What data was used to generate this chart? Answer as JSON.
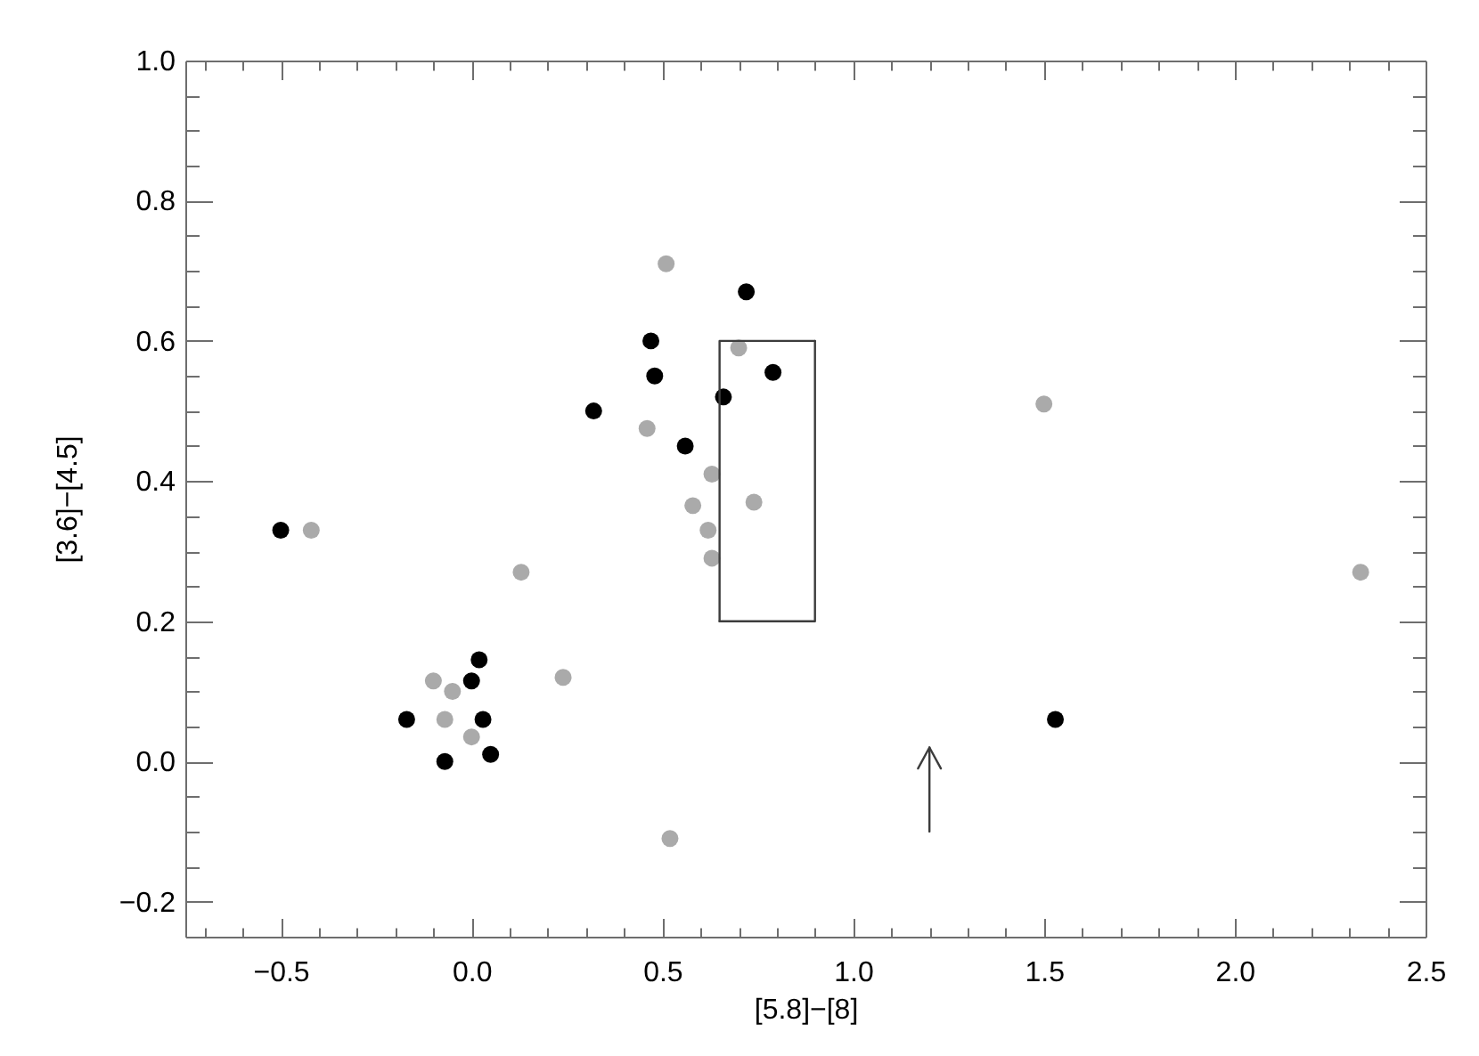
{
  "chart_data": {
    "type": "scatter",
    "xlabel": "[5.8]−[8]",
    "ylabel": "[3.6]−[4.5]",
    "xlim": [
      -0.75,
      2.5
    ],
    "ylim": [
      -0.25,
      1.0
    ],
    "xticks": [
      {
        "value": -0.7,
        "label": null
      },
      {
        "value": -0.6,
        "label": null
      },
      {
        "value": -0.5,
        "label": "−0.5"
      },
      {
        "value": -0.4,
        "label": null
      },
      {
        "value": -0.3,
        "label": null
      },
      {
        "value": -0.2,
        "label": null
      },
      {
        "value": -0.1,
        "label": null
      },
      {
        "value": 0,
        "label": "0.0"
      },
      {
        "value": 0.1,
        "label": null
      },
      {
        "value": 0.2,
        "label": null
      },
      {
        "value": 0.3,
        "label": null
      },
      {
        "value": 0.4,
        "label": null
      },
      0.5,
      {
        "value": 0.6,
        "label": null
      },
      {
        "value": 0.7,
        "label": null
      },
      {
        "value": 0.8,
        "label": null
      },
      {
        "value": 0.9,
        "label": null
      },
      {
        "value": 1,
        "label": "1.0"
      },
      {
        "value": 1.1,
        "label": null
      },
      {
        "value": 1.2,
        "label": null
      },
      {
        "value": 1.3,
        "label": null
      },
      {
        "value": 1.4,
        "label": null
      },
      1.5,
      {
        "value": 1.6,
        "label": null
      },
      {
        "value": 1.7,
        "label": null
      },
      {
        "value": 1.8,
        "label": null
      },
      {
        "value": 1.9,
        "label": null
      },
      {
        "value": 2,
        "label": "2.0"
      },
      {
        "value": 2.1,
        "label": null
      },
      {
        "value": 2.2,
        "label": null
      },
      {
        "value": 2.3,
        "label": null
      },
      {
        "value": 2.4,
        "label": null
      },
      2.5
    ],
    "yticks": [
      {
        "value": -0.2,
        "label": "−0.2"
      },
      {
        "value": -0.15,
        "label": null
      },
      {
        "value": -0.1,
        "label": null
      },
      {
        "value": -0.05,
        "label": null
      },
      {
        "value": 0,
        "label": "0.0"
      },
      {
        "value": 0.05,
        "label": null
      },
      {
        "value": 0.1,
        "label": null
      },
      {
        "value": 0.15,
        "label": null
      },
      0.2,
      {
        "value": 0.25,
        "label": null
      },
      {
        "value": 0.3,
        "label": null
      },
      {
        "value": 0.35,
        "label": null
      },
      0.4,
      {
        "value": 0.45,
        "label": null
      },
      {
        "value": 0.5,
        "label": null
      },
      {
        "value": 0.55,
        "label": null
      },
      0.6,
      {
        "value": 0.65,
        "label": null
      },
      {
        "value": 0.7,
        "label": null
      },
      {
        "value": 0.75,
        "label": null
      },
      0.8,
      {
        "value": 0.85,
        "label": null
      },
      {
        "value": 0.9,
        "label": null
      },
      {
        "value": 0.95,
        "label": null
      },
      {
        "value": 1,
        "label": "1.0"
      }
    ],
    "marker": "circle",
    "series": [
      {
        "color": "#aaaaaa",
        "x": [
          -0.42,
          0.13,
          -0.1,
          -0.05,
          0.24,
          -0.07,
          0.0,
          0.51,
          0.7,
          0.46,
          0.63,
          0.58,
          0.74,
          0.62,
          0.63,
          1.5,
          2.33,
          0.52
        ],
        "values": [
          0.33,
          0.27,
          0.115,
          0.1,
          0.12,
          0.06,
          0.035,
          0.71,
          0.59,
          0.475,
          0.41,
          0.365,
          0.37,
          0.33,
          0.29,
          0.51,
          0.27,
          -0.11
        ]
      },
      {
        "color": "#000000",
        "x": [
          -0.5,
          -0.17,
          -0.07,
          0.02,
          0.0,
          0.03,
          0.05,
          0.32,
          0.47,
          0.48,
          0.56,
          0.66,
          0.72,
          0.79,
          1.53
        ],
        "values": [
          0.33,
          0.06,
          0.0,
          0.145,
          0.115,
          0.06,
          0.01,
          0.5,
          0.6,
          0.55,
          0.45,
          0.52,
          0.67,
          0.555,
          0.06
        ]
      },
      {
        "type": "line",
        "marker": "none",
        "color": "#3c3c3c",
        "x": [
          0.65,
          0.65,
          0.9
        ],
        "values": [
          0.2,
          0.6,
          0.6
        ]
      },
      {
        "type": "line",
        "marker": "none",
        "color": "#3c3c3c",
        "x": [
          0.65,
          0.9,
          0.9
        ],
        "values": [
          0.2,
          0.2,
          0.6
        ]
      },
      {
        "type": "line",
        "marker": "none",
        "color": "#3c3c3c",
        "x": [
          1.2,
          1.2
        ],
        "values": [
          -0.1,
          0.02
        ]
      },
      {
        "type": "line",
        "marker": "none",
        "color": "#3c3c3c",
        "x": [
          1.17,
          1.2,
          1.23
        ],
        "values": [
          -0.01,
          0.02,
          -0.01
        ]
      }
    ]
  }
}
